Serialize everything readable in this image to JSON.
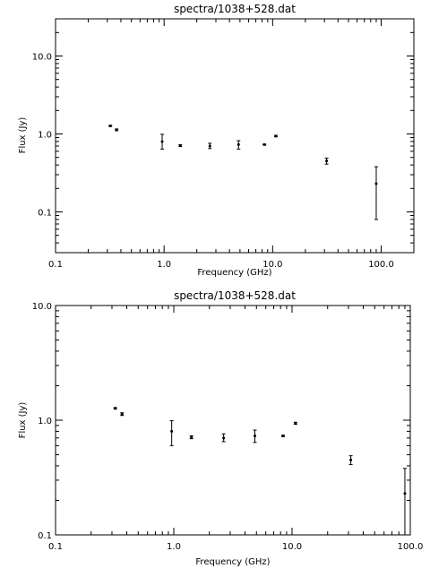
{
  "chart_data": [
    {
      "type": "scatter",
      "title": "spectra/1038+528.dat",
      "xlabel": "Frequency (GHz)",
      "ylabel": "Flux (Jy)",
      "xscale": "log",
      "yscale": "log",
      "xlim": [
        0.1,
        200
      ],
      "ylim": [
        0.03,
        30
      ],
      "xticks": [
        0.1,
        1.0,
        10.0,
        100.0
      ],
      "xtick_labels": [
        "0.1",
        "1.0",
        "10.0",
        "100.0"
      ],
      "yticks": [
        0.1,
        1.0,
        10.0
      ],
      "ytick_labels": [
        "0.1",
        "1.0",
        "10.0"
      ],
      "grid": false,
      "points": [
        {
          "x": 0.32,
          "y": 1.27,
          "ylow": 1.25,
          "yhigh": 1.29
        },
        {
          "x": 0.365,
          "y": 1.13,
          "ylow": 1.1,
          "yhigh": 1.16
        },
        {
          "x": 0.96,
          "y": 0.8,
          "ylow": 0.64,
          "yhigh": 0.99
        },
        {
          "x": 1.41,
          "y": 0.71,
          "ylow": 0.69,
          "yhigh": 0.73
        },
        {
          "x": 2.64,
          "y": 0.7,
          "ylow": 0.65,
          "yhigh": 0.76
        },
        {
          "x": 4.85,
          "y": 0.73,
          "ylow": 0.64,
          "yhigh": 0.82
        },
        {
          "x": 8.4,
          "y": 0.73,
          "ylow": 0.72,
          "yhigh": 0.74
        },
        {
          "x": 10.7,
          "y": 0.94,
          "ylow": 0.92,
          "yhigh": 0.96
        },
        {
          "x": 31.4,
          "y": 0.45,
          "ylow": 0.41,
          "yhigh": 0.49
        },
        {
          "x": 90.0,
          "y": 0.23,
          "ylow": 0.08,
          "yhigh": 0.38
        }
      ]
    },
    {
      "type": "scatter",
      "title": "spectra/1038+528.dat",
      "xlabel": "Frequency (GHz)",
      "ylabel": "Flux (Jy)",
      "xscale": "log",
      "yscale": "log",
      "xlim": [
        0.1,
        100
      ],
      "ylim": [
        0.1,
        10
      ],
      "xticks": [
        0.1,
        1.0,
        10.0,
        100.0
      ],
      "xtick_labels": [
        "0.1",
        "1.0",
        "10.0",
        "100.0"
      ],
      "yticks": [
        0.1,
        1.0,
        10.0
      ],
      "ytick_labels": [
        "0.1",
        "1.0",
        "10.0"
      ],
      "grid": false,
      "points": [
        {
          "x": 0.32,
          "y": 1.27,
          "ylow": 1.25,
          "yhigh": 1.29
        },
        {
          "x": 0.365,
          "y": 1.13,
          "ylow": 1.1,
          "yhigh": 1.16
        },
        {
          "x": 0.96,
          "y": 0.8,
          "ylow": 0.6,
          "yhigh": 0.99
        },
        {
          "x": 1.41,
          "y": 0.71,
          "ylow": 0.69,
          "yhigh": 0.73
        },
        {
          "x": 2.64,
          "y": 0.7,
          "ylow": 0.65,
          "yhigh": 0.76
        },
        {
          "x": 4.85,
          "y": 0.73,
          "ylow": 0.64,
          "yhigh": 0.82
        },
        {
          "x": 8.4,
          "y": 0.73,
          "ylow": 0.72,
          "yhigh": 0.74
        },
        {
          "x": 10.7,
          "y": 0.94,
          "ylow": 0.92,
          "yhigh": 0.96
        },
        {
          "x": 31.4,
          "y": 0.45,
          "ylow": 0.41,
          "yhigh": 0.49
        },
        {
          "x": 90.0,
          "y": 0.23,
          "ylow": 0.1,
          "yhigh": 0.38
        }
      ]
    }
  ]
}
